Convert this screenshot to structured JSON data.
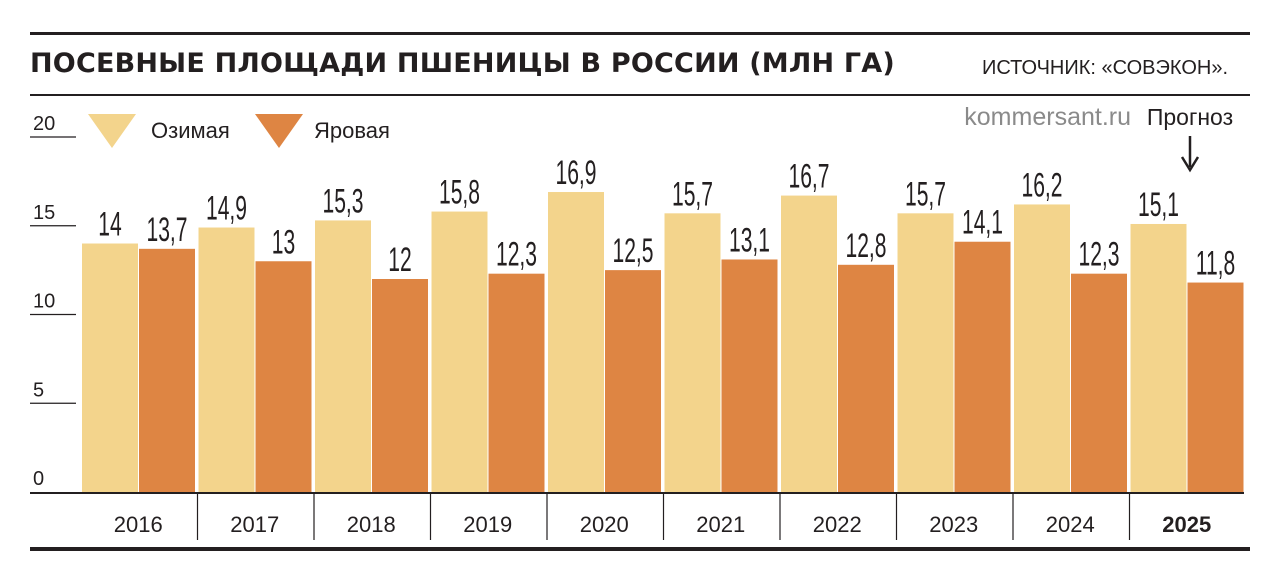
{
  "header": {
    "title": "ПОСЕВНЫЕ ПЛОЩАДИ ПШЕНИЦЫ В РОССИИ (МЛН ГА)",
    "source": "ИСТОЧНИК: «СОВЭКОН»."
  },
  "credit": "kommersant.ru",
  "forecast": {
    "label": "Прогноз",
    "category": "2025"
  },
  "colors": {
    "winter": "#f3d48c",
    "spring": "#de8543",
    "ink": "#231f20"
  },
  "chart_data": {
    "type": "bar",
    "title": "ПОСЕВНЫЕ ПЛОЩАДИ ПШЕНИЦЫ В РОССИИ (МЛН ГА)",
    "xlabel": "",
    "ylabel": "",
    "ylim": [
      0,
      20
    ],
    "yticks": [
      0,
      5,
      10,
      15,
      20
    ],
    "grid": false,
    "legend": "top-left",
    "categories": [
      "2016",
      "2017",
      "2018",
      "2019",
      "2020",
      "2021",
      "2022",
      "2023",
      "2024",
      "2025"
    ],
    "series": [
      {
        "name": "Озимая",
        "values": [
          14,
          14.9,
          15.3,
          15.8,
          16.9,
          15.7,
          16.7,
          15.7,
          16.2,
          15.1
        ],
        "labels": [
          "14",
          "14,9",
          "15,3",
          "15,8",
          "16,9",
          "15,7",
          "16,7",
          "15,7",
          "16,2",
          "15,1"
        ]
      },
      {
        "name": "Яровая",
        "values": [
          13.7,
          13,
          12,
          12.3,
          12.5,
          13.1,
          12.8,
          14.1,
          12.3,
          11.8
        ],
        "labels": [
          "13,7",
          "13",
          "12",
          "12,3",
          "12,5",
          "13,1",
          "12,8",
          "14,1",
          "12,3",
          "11,8"
        ]
      }
    ]
  }
}
